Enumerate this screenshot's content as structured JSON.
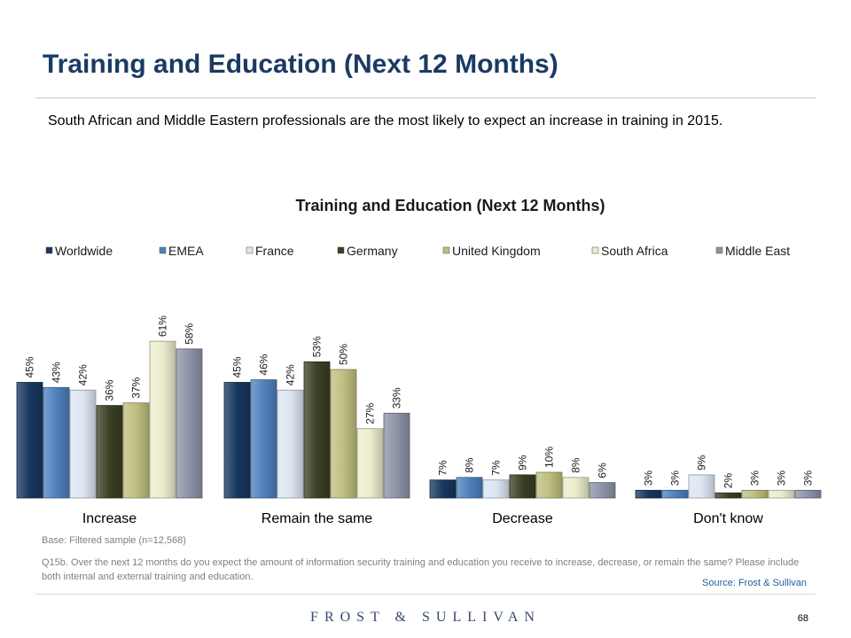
{
  "page": {
    "title": "Training and Education (Next 12 Months)",
    "subtitle": "South African and Middle Eastern professionals are the most likely to expect an increase in training in 2015."
  },
  "footer": {
    "base": "Base: Filtered sample (n=12,568)",
    "question": "Q15b. Over the next 12 months do you expect the amount of information security training and education you receive to increase, decrease, or remain the same? Please include both internal and external training and education.",
    "source": "Source: Frost & Sullivan",
    "logo": "FROST & SULLIVAN",
    "page_number": "68"
  },
  "chart_data": {
    "type": "bar",
    "title": "Training and Education (Next 12 Months)",
    "categories": [
      "Increase",
      "Remain the same",
      "Decrease",
      "Don't know"
    ],
    "series": [
      {
        "name": "Worldwide",
        "color": "#17375e",
        "values": [
          45,
          45,
          7,
          3
        ]
      },
      {
        "name": "EMEA",
        "color": "#4f81bd",
        "values": [
          43,
          46,
          8,
          3
        ]
      },
      {
        "name": "France",
        "color": "#dce6f2",
        "values": [
          42,
          42,
          7,
          9
        ]
      },
      {
        "name": "Germany",
        "color": "#3b3f24",
        "values": [
          36,
          53,
          9,
          2
        ]
      },
      {
        "name": "United Kingdom",
        "color": "#bfbf7f",
        "values": [
          37,
          50,
          10,
          3
        ]
      },
      {
        "name": "South Africa",
        "color": "#ececcc",
        "values": [
          61,
          27,
          8,
          3
        ]
      },
      {
        "name": "Middle East",
        "color": "#8c93a6",
        "values": [
          58,
          33,
          6,
          3
        ]
      }
    ],
    "value_suffix": "%",
    "ylim": [
      0,
      100
    ],
    "grid": false,
    "legend": "top"
  }
}
